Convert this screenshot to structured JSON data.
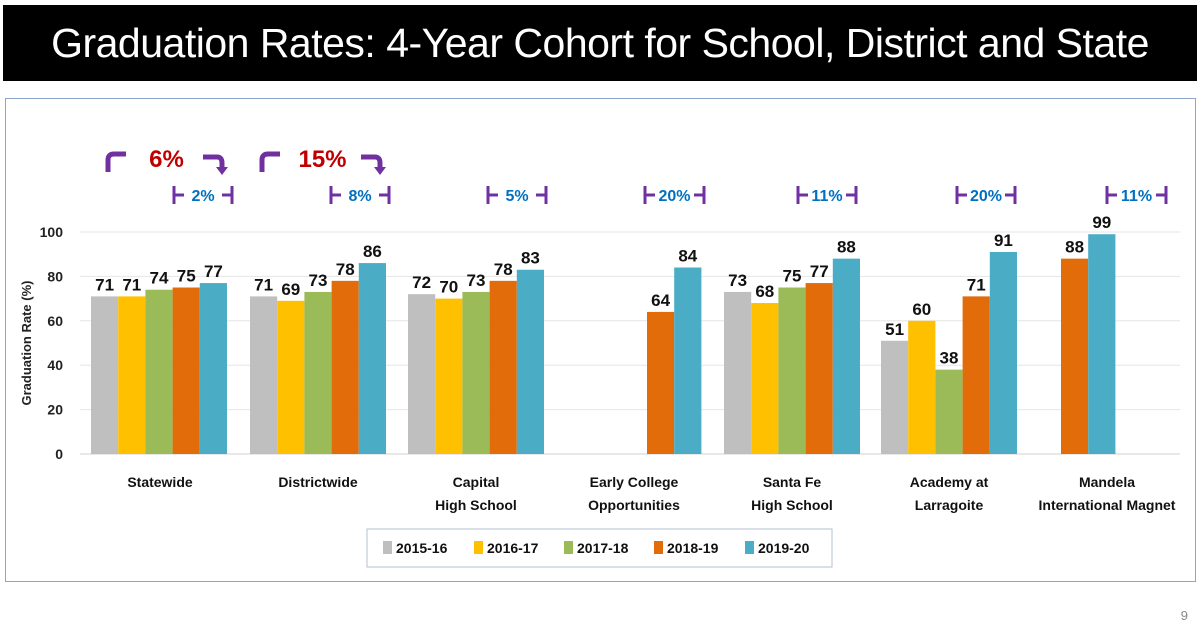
{
  "page": {
    "title": "Graduation Rates: 4-Year Cohort for School, District and State",
    "page_number": "9"
  },
  "colors": {
    "2015-16": "#bfbfbf",
    "2016-17": "#ffc000",
    "2017-18": "#9bbb59",
    "2018-19": "#e36c0a",
    "2019-20": "#4bacc6",
    "bracket": "#7030a0",
    "big_change": "#c00000",
    "small_change": "#0070c0"
  },
  "chart_data": {
    "type": "bar",
    "title": "Graduation Rates: 4-Year Cohort for School, District and State",
    "xlabel": "",
    "ylabel": "Graduation Rate (%)",
    "ylim": [
      0,
      100
    ],
    "yticks": [
      0,
      20,
      40,
      60,
      80,
      100
    ],
    "grid": true,
    "legend_position": "bottom",
    "categories": [
      [
        "Statewide"
      ],
      [
        "Districtwide"
      ],
      [
        "Capital",
        "High School"
      ],
      [
        "Early College",
        "Opportunities"
      ],
      [
        "Santa Fe",
        "High School"
      ],
      [
        "Academy at",
        "Larragoite"
      ],
      [
        "Mandela",
        "International Magnet"
      ]
    ],
    "series": [
      {
        "name": "2015-16",
        "values": [
          71,
          71,
          72,
          null,
          73,
          51,
          null
        ]
      },
      {
        "name": "2016-17",
        "values": [
          71,
          69,
          70,
          null,
          68,
          60,
          null
        ]
      },
      {
        "name": "2017-18",
        "values": [
          74,
          73,
          73,
          null,
          75,
          38,
          null
        ]
      },
      {
        "name": "2018-19",
        "values": [
          75,
          78,
          78,
          64,
          77,
          71,
          88
        ]
      },
      {
        "name": "2019-20",
        "values": [
          77,
          86,
          83,
          84,
          88,
          91,
          99
        ]
      }
    ],
    "annotations": {
      "five_year_change": [
        {
          "category": "Statewide",
          "label": "6%"
        },
        {
          "category": "Districtwide",
          "label": "15%"
        }
      ],
      "one_year_change": [
        {
          "category": "Statewide",
          "label": "2%"
        },
        {
          "category": "Districtwide",
          "label": "8%"
        },
        {
          "category": "Capital High School",
          "label": "5%"
        },
        {
          "category": "Early College Opportunities",
          "label": "20%"
        },
        {
          "category": "Santa Fe High School",
          "label": "11%"
        },
        {
          "category": "Academy at Larragoite",
          "label": "20%"
        },
        {
          "category": "Mandela International Magnet",
          "label": "11%"
        }
      ]
    }
  }
}
